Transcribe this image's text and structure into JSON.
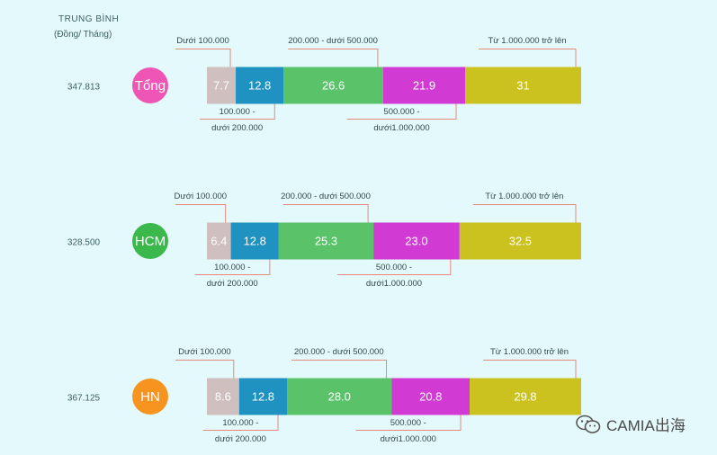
{
  "header": {
    "avg_line1": "TRUNG BÌNH",
    "avg_line2": "(Đồng/ Tháng)"
  },
  "colors": {
    "background": "#e4f9fb",
    "segments": [
      "#cfbfbf",
      "#1f92c2",
      "#5ac36a",
      "#d23bd3",
      "#cbc21f"
    ],
    "badges": {
      "Tổng": "#ef55b4",
      "HCM": "#3ab84c",
      "HN": "#f6941f"
    },
    "leader_line": "#e58a7f",
    "value_text": "#ffffff"
  },
  "chart_data": {
    "type": "bar",
    "orientation": "horizontal",
    "stacked": true,
    "categories": [
      "Tổng",
      "HCM",
      "HN"
    ],
    "averages": [
      "347.813",
      "328.500",
      "367.125"
    ],
    "series": [
      {
        "name": "Dưới 100.000",
        "values": [
          7.7,
          6.4,
          8.6
        ],
        "labels": [
          "7.7",
          "6.4",
          "8.6"
        ]
      },
      {
        "name": "100.000 - dưới 200.000",
        "values": [
          12.8,
          12.8,
          12.8
        ],
        "labels": [
          "12.8",
          "12.8",
          "12.8"
        ]
      },
      {
        "name": "200.000 - dưới 500.000",
        "values": [
          26.6,
          25.3,
          28.0
        ],
        "labels": [
          "26.6",
          "25.3",
          "28.0"
        ]
      },
      {
        "name": "500.000 - dưới1.000.000",
        "values": [
          21.9,
          23.0,
          20.8
        ],
        "labels": [
          "21.9",
          "23.0",
          "20.8"
        ]
      },
      {
        "name": "Từ 1.000.000 trở lên",
        "values": [
          31,
          32.5,
          29.8
        ],
        "labels": [
          "31",
          "32.5",
          "29.8"
        ]
      }
    ],
    "callouts": {
      "above": [
        {
          "series": 0,
          "text": [
            "Dưới 100.000"
          ]
        },
        {
          "series": 2,
          "text": [
            "200.000 - dưới 500.000"
          ]
        },
        {
          "series": 4,
          "text": [
            "Từ 1.000.000 trở lên"
          ]
        }
      ],
      "below": [
        {
          "series": 1,
          "text": [
            "100.000 -",
            "dưới 200.000"
          ]
        },
        {
          "series": 3,
          "text": [
            "500.000 -",
            "dưới1.000.000"
          ]
        }
      ]
    }
  },
  "watermark": {
    "text": "CAMIA出海",
    "icon": "wechat-icon"
  }
}
